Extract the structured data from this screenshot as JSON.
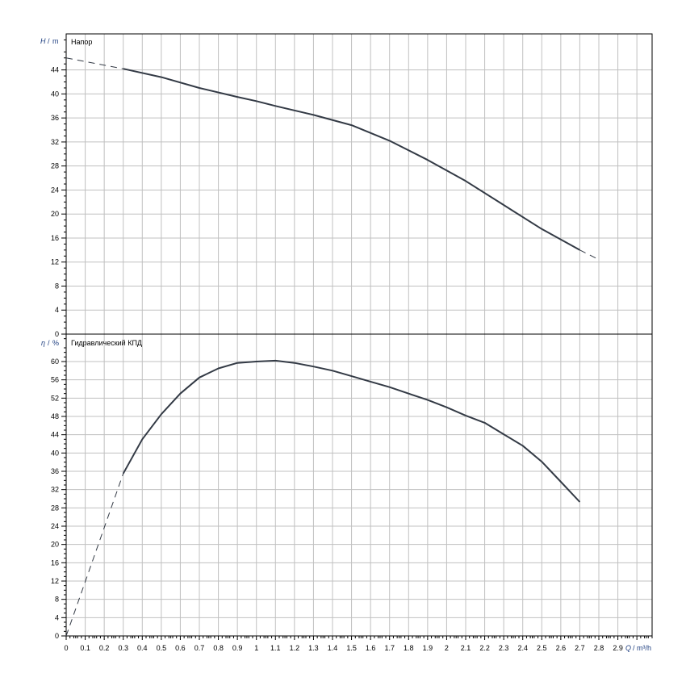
{
  "chart_data": [
    {
      "type": "line",
      "title": "Напор",
      "ylabel_symbol": "H",
      "ylabel_unit": "m",
      "xlim": [
        0,
        3.08
      ],
      "ylim": [
        0,
        50
      ],
      "yticks": [
        0,
        4,
        8,
        12,
        16,
        20,
        24,
        28,
        32,
        36,
        40,
        44
      ],
      "grid": true,
      "line_color": "#333a45",
      "series": [
        {
          "style": "dashed",
          "x": [
            0,
            0.3
          ],
          "y": [
            46.0,
            44.2
          ]
        },
        {
          "style": "solid",
          "x": [
            0.3,
            0.5,
            0.7,
            0.9,
            1.0,
            1.1,
            1.3,
            1.5,
            1.7,
            1.9,
            2.1,
            2.3,
            2.5,
            2.7
          ],
          "y": [
            44.2,
            42.8,
            41.0,
            39.5,
            38.8,
            38.0,
            36.5,
            34.8,
            32.2,
            29.0,
            25.5,
            21.5,
            17.5,
            14.0
          ]
        },
        {
          "style": "dashed",
          "x": [
            2.7,
            2.8
          ],
          "y": [
            14.0,
            12.4
          ]
        }
      ]
    },
    {
      "type": "line",
      "title": "Гидравлический КПД",
      "ylabel_symbol": "η",
      "ylabel_unit": "%",
      "xlabel_symbol": "Q",
      "xlabel_unit": "m³/h",
      "xlim": [
        0,
        3.08
      ],
      "ylim": [
        0,
        66
      ],
      "xticks": [
        "0",
        "0.1",
        "0.2",
        "0.3",
        "0.4",
        "0.5",
        "0.6",
        "0.7",
        "0.8",
        "0.9",
        "1",
        "1.1",
        "1.2",
        "1.3",
        "1.4",
        "1.5",
        "1.6",
        "1.7",
        "1.8",
        "1.9",
        "2",
        "2.1",
        "2.2",
        "2.3",
        "2.4",
        "2.5",
        "2.6",
        "2.7",
        "2.8",
        "2.9"
      ],
      "yticks": [
        0,
        4,
        8,
        12,
        16,
        20,
        24,
        28,
        32,
        36,
        40,
        44,
        48,
        52,
        56,
        60
      ],
      "grid": true,
      "line_color": "#333a45",
      "series": [
        {
          "style": "dashed",
          "x": [
            0,
            0.3
          ],
          "y": [
            0,
            35.5
          ]
        },
        {
          "style": "solid",
          "x": [
            0.3,
            0.4,
            0.5,
            0.6,
            0.7,
            0.8,
            0.9,
            1.0,
            1.1,
            1.2,
            1.3,
            1.4,
            1.5,
            1.6,
            1.7,
            1.8,
            1.9,
            2.0,
            2.1,
            2.2,
            2.3,
            2.4,
            2.5,
            2.6,
            2.7
          ],
          "y": [
            35.5,
            43,
            48.5,
            53,
            56.5,
            58.5,
            59.7,
            60,
            60.2,
            59.7,
            58.9,
            58,
            56.8,
            55.6,
            54.4,
            53,
            51.6,
            50,
            48.2,
            46.6,
            44.1,
            41.6,
            38.1,
            33.7,
            29.3
          ]
        }
      ]
    }
  ]
}
